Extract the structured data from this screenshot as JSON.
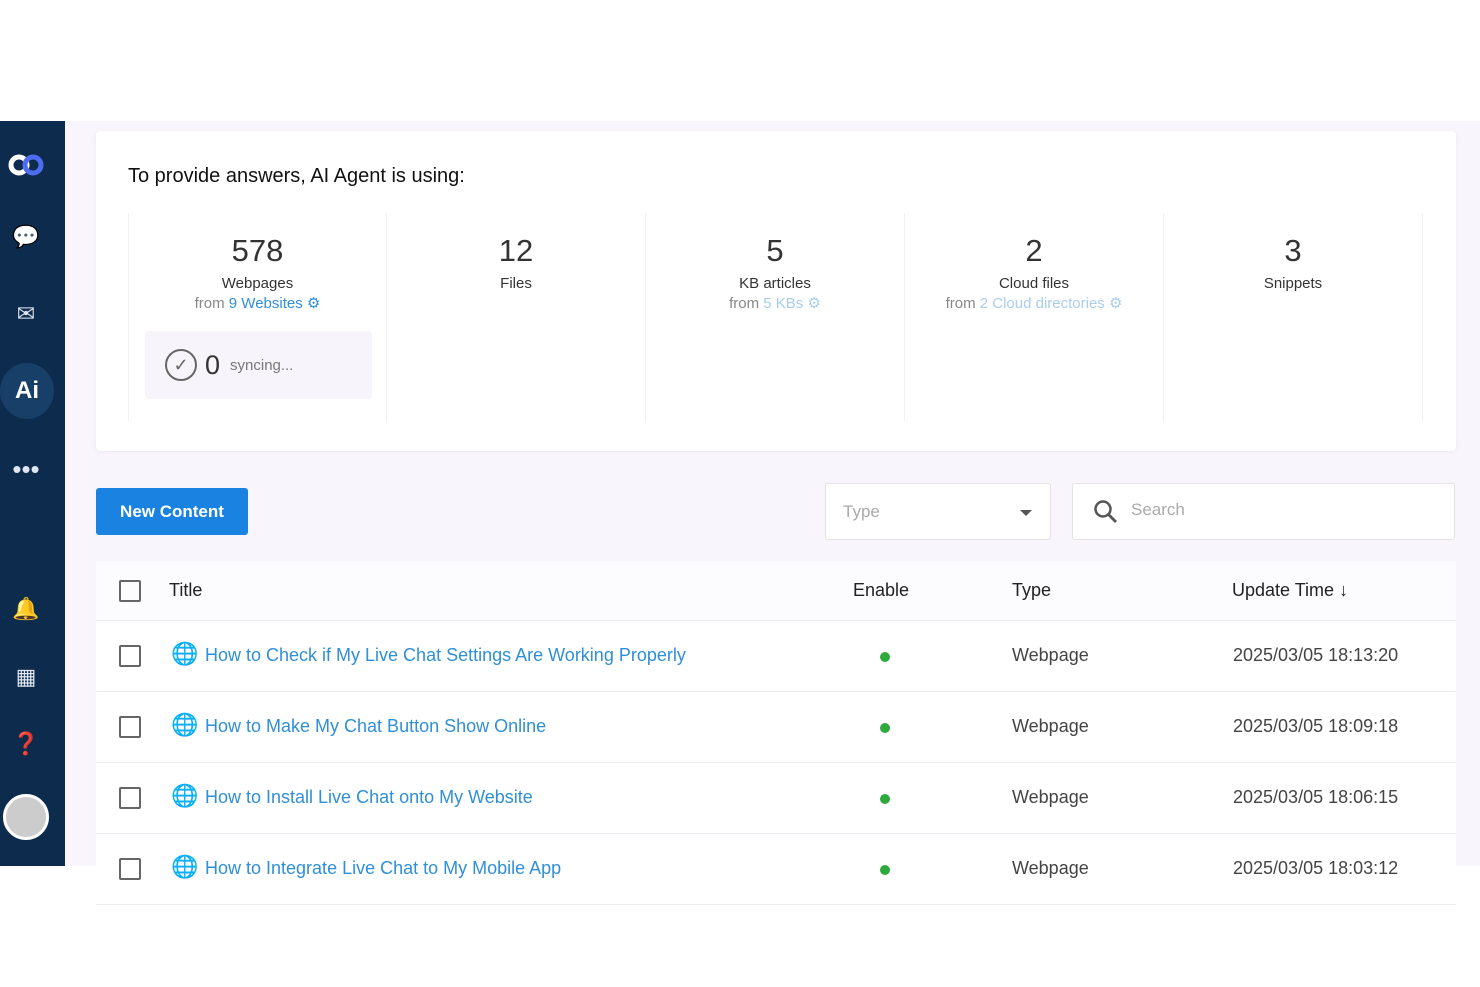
{
  "sidebar": {
    "items": [
      {
        "icon": "logo-icon"
      },
      {
        "icon": "chat-icon"
      },
      {
        "icon": "messages-icon"
      },
      {
        "icon": "ai-icon",
        "label": "Ai",
        "active": true
      },
      {
        "icon": "more-icon"
      },
      {
        "icon": "bell-icon"
      },
      {
        "icon": "apps-icon"
      },
      {
        "icon": "help-icon"
      },
      {
        "icon": "avatar-icon"
      }
    ]
  },
  "summary": {
    "heading": "To provide answers, AI Agent is using:",
    "stats": [
      {
        "num": "578",
        "label": "Webpages",
        "from": "from",
        "link": "9 Websites"
      },
      {
        "num": "12",
        "label": "Files"
      },
      {
        "num": "5",
        "label": "KB articles",
        "from": "from",
        "link": "5 KBs"
      },
      {
        "num": "2",
        "label": "Cloud files",
        "from": "from",
        "link": "2 Cloud directories"
      },
      {
        "num": "3",
        "label": "Snippets"
      }
    ],
    "syncing": {
      "count": "0",
      "label": "syncing..."
    }
  },
  "toolbar": {
    "new_content": "New Content",
    "type_placeholder": "Type",
    "search_placeholder": "Search"
  },
  "table": {
    "headers": {
      "title": "Title",
      "enable": "Enable",
      "type": "Type",
      "update": "Update Time"
    },
    "rows": [
      {
        "title": "How to Check if My Live Chat Settings Are Working Properly",
        "enabled": true,
        "type": "Webpage",
        "time": "2025/03/05 18:13:20"
      },
      {
        "title": "How to Make My Chat Button Show Online",
        "enabled": true,
        "type": "Webpage",
        "time": "2025/03/05 18:09:18"
      },
      {
        "title": "How to Install Live Chat onto My Website",
        "enabled": true,
        "type": "Webpage",
        "time": "2025/03/05 18:06:15"
      },
      {
        "title": "How to Integrate Live Chat to My Mobile App",
        "enabled": true,
        "type": "Webpage",
        "time": "2025/03/05 18:03:12"
      }
    ]
  },
  "colors": {
    "sidebar": "#0d2b4c",
    "accent": "#1a82e0",
    "link": "#2f8fd8",
    "enabled": "#2eaa3c"
  }
}
